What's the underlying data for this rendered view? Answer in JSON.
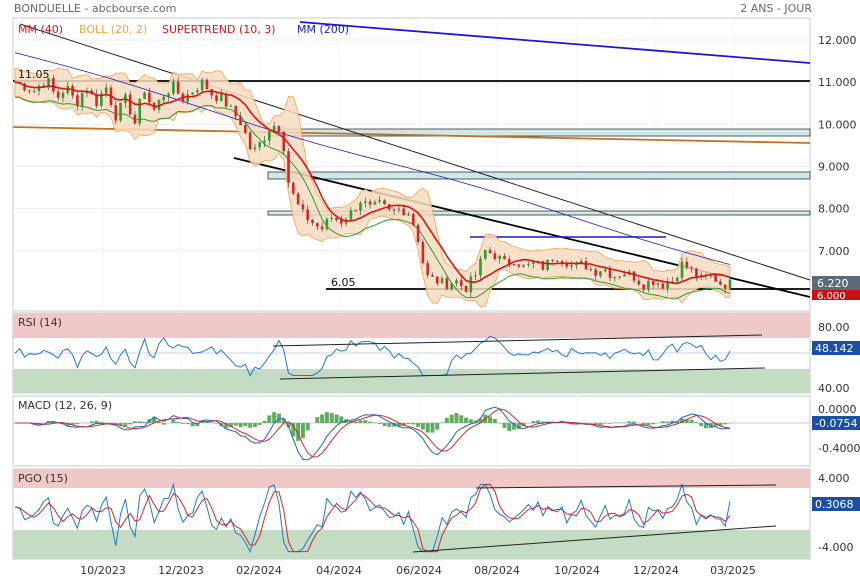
{
  "header": {
    "title": "BONDUELLE - abcbourse.com",
    "period": "2 ANS - JOUR"
  },
  "colors": {
    "mm40": "#dd1111",
    "boll": "#f2a04d",
    "boll_fill": "#f7dcc2",
    "supertrend": "#2e9a2e",
    "mm200": "#1a1acc",
    "candle_up": "#2ca02c",
    "candle_down": "#d62728",
    "rsi": "#1f77d4",
    "macd": "#1f5fd4",
    "signal": "#d62728",
    "hist": "#5fae5f",
    "pgo": "#1f77d4",
    "pgo_signal": "#d62728",
    "zone_high": "#f0c8c8",
    "zone_low": "#c4dcc4",
    "price_badge": "#5b6b78",
    "neg_badge": "#cc1111",
    "value_badge": "#1a4fa3"
  },
  "chart_data": [
    {
      "type": "candlestick",
      "title": "BONDUELLE - abcbourse.com",
      "legend": [
        {
          "name": "MM (40)",
          "color": "#dd1111"
        },
        {
          "name": "BOLL (20, 2)",
          "color": "#f2a04d"
        },
        {
          "name": "SUPERTREND (10, 3)",
          "color": "#dd1111"
        },
        {
          "name": "MM (200)",
          "color": "#1a1acc"
        }
      ],
      "x_ticks": [
        "10/2023",
        "12/2023",
        "02/2024",
        "04/2024",
        "06/2024",
        "08/2024",
        "10/2024",
        "12/2024",
        "03/2025"
      ],
      "y_ticks": [
        "12.000",
        "11.000",
        "10.000",
        "9.000",
        "8.000",
        "7.000",
        "6.000"
      ],
      "ylim": [
        5.6,
        12.4
      ],
      "annotations": [
        "11.05",
        "6.05"
      ],
      "last_price": "6.220",
      "last_level": "6.000",
      "close_series": [
        {
          "t": 0,
          "v": 11.0
        },
        {
          "t": 10,
          "v": 10.9
        },
        {
          "t": 20,
          "v": 10.8
        },
        {
          "t": 32,
          "v": 11.1
        },
        {
          "t": 42,
          "v": 10.6
        },
        {
          "t": 52,
          "v": 10.9
        },
        {
          "t": 62,
          "v": 10.5
        },
        {
          "t": 72,
          "v": 10.9
        },
        {
          "t": 82,
          "v": 10.5
        },
        {
          "t": 92,
          "v": 10.9
        },
        {
          "t": 102,
          "v": 10.2
        },
        {
          "t": 112,
          "v": 10.6
        },
        {
          "t": 122,
          "v": 10.0
        },
        {
          "t": 130,
          "v": 10.9
        },
        {
          "t": 140,
          "v": 10.3
        },
        {
          "t": 150,
          "v": 10.7
        },
        {
          "t": 160,
          "v": 10.9
        },
        {
          "t": 170,
          "v": 10.6
        },
        {
          "t": 180,
          "v": 10.8
        },
        {
          "t": 190,
          "v": 11.0
        },
        {
          "t": 200,
          "v": 10.7
        },
        {
          "t": 210,
          "v": 10.6
        },
        {
          "t": 220,
          "v": 10.3
        },
        {
          "t": 230,
          "v": 10.0
        },
        {
          "t": 240,
          "v": 9.3
        },
        {
          "t": 250,
          "v": 9.6
        },
        {
          "t": 260,
          "v": 10.0
        },
        {
          "t": 270,
          "v": 9.9
        },
        {
          "t": 276,
          "v": 8.7
        },
        {
          "t": 282,
          "v": 8.3
        },
        {
          "t": 290,
          "v": 7.9
        },
        {
          "t": 300,
          "v": 7.7
        },
        {
          "t": 310,
          "v": 7.5
        },
        {
          "t": 320,
          "v": 7.8
        },
        {
          "t": 330,
          "v": 7.7
        },
        {
          "t": 340,
          "v": 7.9
        },
        {
          "t": 350,
          "v": 8.2
        },
        {
          "t": 360,
          "v": 8.0
        },
        {
          "t": 370,
          "v": 8.1
        },
        {
          "t": 380,
          "v": 7.9
        },
        {
          "t": 390,
          "v": 8.0
        },
        {
          "t": 400,
          "v": 7.9
        },
        {
          "t": 408,
          "v": 7.3
        },
        {
          "t": 416,
          "v": 6.4
        },
        {
          "t": 426,
          "v": 6.3
        },
        {
          "t": 436,
          "v": 6.2
        },
        {
          "t": 446,
          "v": 6.3
        },
        {
          "t": 456,
          "v": 6.1
        },
        {
          "t": 466,
          "v": 6.4
        },
        {
          "t": 476,
          "v": 7.0
        },
        {
          "t": 486,
          "v": 6.9
        },
        {
          "t": 496,
          "v": 6.7
        },
        {
          "t": 506,
          "v": 6.8
        },
        {
          "t": 516,
          "v": 6.6
        },
        {
          "t": 526,
          "v": 6.7
        },
        {
          "t": 536,
          "v": 6.6
        },
        {
          "t": 546,
          "v": 6.9
        },
        {
          "t": 556,
          "v": 6.8
        },
        {
          "t": 566,
          "v": 6.6
        },
        {
          "t": 576,
          "v": 6.7
        },
        {
          "t": 586,
          "v": 6.5
        },
        {
          "t": 596,
          "v": 6.6
        },
        {
          "t": 606,
          "v": 6.4
        },
        {
          "t": 616,
          "v": 6.5
        },
        {
          "t": 626,
          "v": 6.4
        },
        {
          "t": 636,
          "v": 6.2
        },
        {
          "t": 646,
          "v": 6.3
        },
        {
          "t": 656,
          "v": 6.2
        },
        {
          "t": 666,
          "v": 6.3
        },
        {
          "t": 676,
          "v": 6.7
        },
        {
          "t": 686,
          "v": 6.5
        },
        {
          "t": 696,
          "v": 6.3
        },
        {
          "t": 706,
          "v": 6.4
        },
        {
          "t": 716,
          "v": 6.2
        },
        {
          "t": 724,
          "v": 6.22
        }
      ]
    },
    {
      "type": "line",
      "title": "RSI (14)",
      "y_ticks": [
        "80.00",
        "40.00"
      ],
      "last_value": "48.142"
    },
    {
      "type": "line",
      "title": "MACD (12, 26, 9)",
      "y_ticks": [
        "0.0000",
        "-0.4000"
      ],
      "last_value": "-0.0754"
    },
    {
      "type": "line",
      "title": "PGO (15)",
      "y_ticks": [
        "4.000",
        "0.000",
        "-4.000"
      ],
      "last_value": "0.3068"
    }
  ]
}
